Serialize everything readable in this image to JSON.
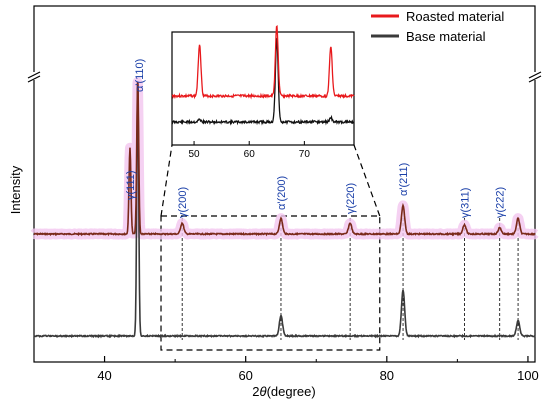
{
  "chart_data": {
    "type": "line",
    "xlabel": "2θ(degree)",
    "ylabel": "Intensity",
    "xlim": [
      30,
      101
    ],
    "x_ticks": [
      40,
      60,
      80,
      100
    ],
    "legend": {
      "placement": "top-right",
      "entries": [
        {
          "name": "Roasted material",
          "color": "#e8191c"
        },
        {
          "name": "Base material",
          "color": "#3a3a3a"
        }
      ]
    },
    "axis_break": "y-axis break marks on both sides near top",
    "series": [
      {
        "name": "Roasted material",
        "color": "#7a2a1a",
        "peaks": [
          {
            "x": 43.6,
            "label": "γ(111)",
            "rel_height": 0.55
          },
          {
            "x": 44.7,
            "label": "α'(110)",
            "rel_height": 1.0
          },
          {
            "x": 51.0,
            "label": "γ(200)",
            "rel_height": 0.07
          },
          {
            "x": 65.0,
            "label": "α'(200)",
            "rel_height": 0.1
          },
          {
            "x": 74.8,
            "label": "γ(220)",
            "rel_height": 0.07
          },
          {
            "x": 82.3,
            "label": "α'(211)",
            "rel_height": 0.18
          },
          {
            "x": 91.0,
            "label": "γ(311)",
            "rel_height": 0.06
          },
          {
            "x": 96.0,
            "label": "γ(222)",
            "rel_height": 0.04
          },
          {
            "x": 98.6,
            "label": "",
            "rel_height": 0.1
          }
        ]
      },
      {
        "name": "Base material",
        "color": "#3a3a3a",
        "peaks": [
          {
            "x": 44.7,
            "label": "",
            "rel_height": 1.0
          },
          {
            "x": 65.0,
            "label": "",
            "rel_height": 0.08
          },
          {
            "x": 82.3,
            "label": "",
            "rel_height": 0.18
          },
          {
            "x": 98.6,
            "label": "",
            "rel_height": 0.06
          }
        ]
      }
    ],
    "zoom_box": {
      "xmin": 48,
      "xmax": 79
    },
    "inset": {
      "xlim": [
        46,
        79
      ],
      "x_ticks": [
        50,
        60,
        70
      ],
      "roasted_peaks": [
        51.0,
        65.0,
        74.8
      ],
      "base_peaks": [
        51.0,
        65.0,
        74.8
      ]
    }
  }
}
